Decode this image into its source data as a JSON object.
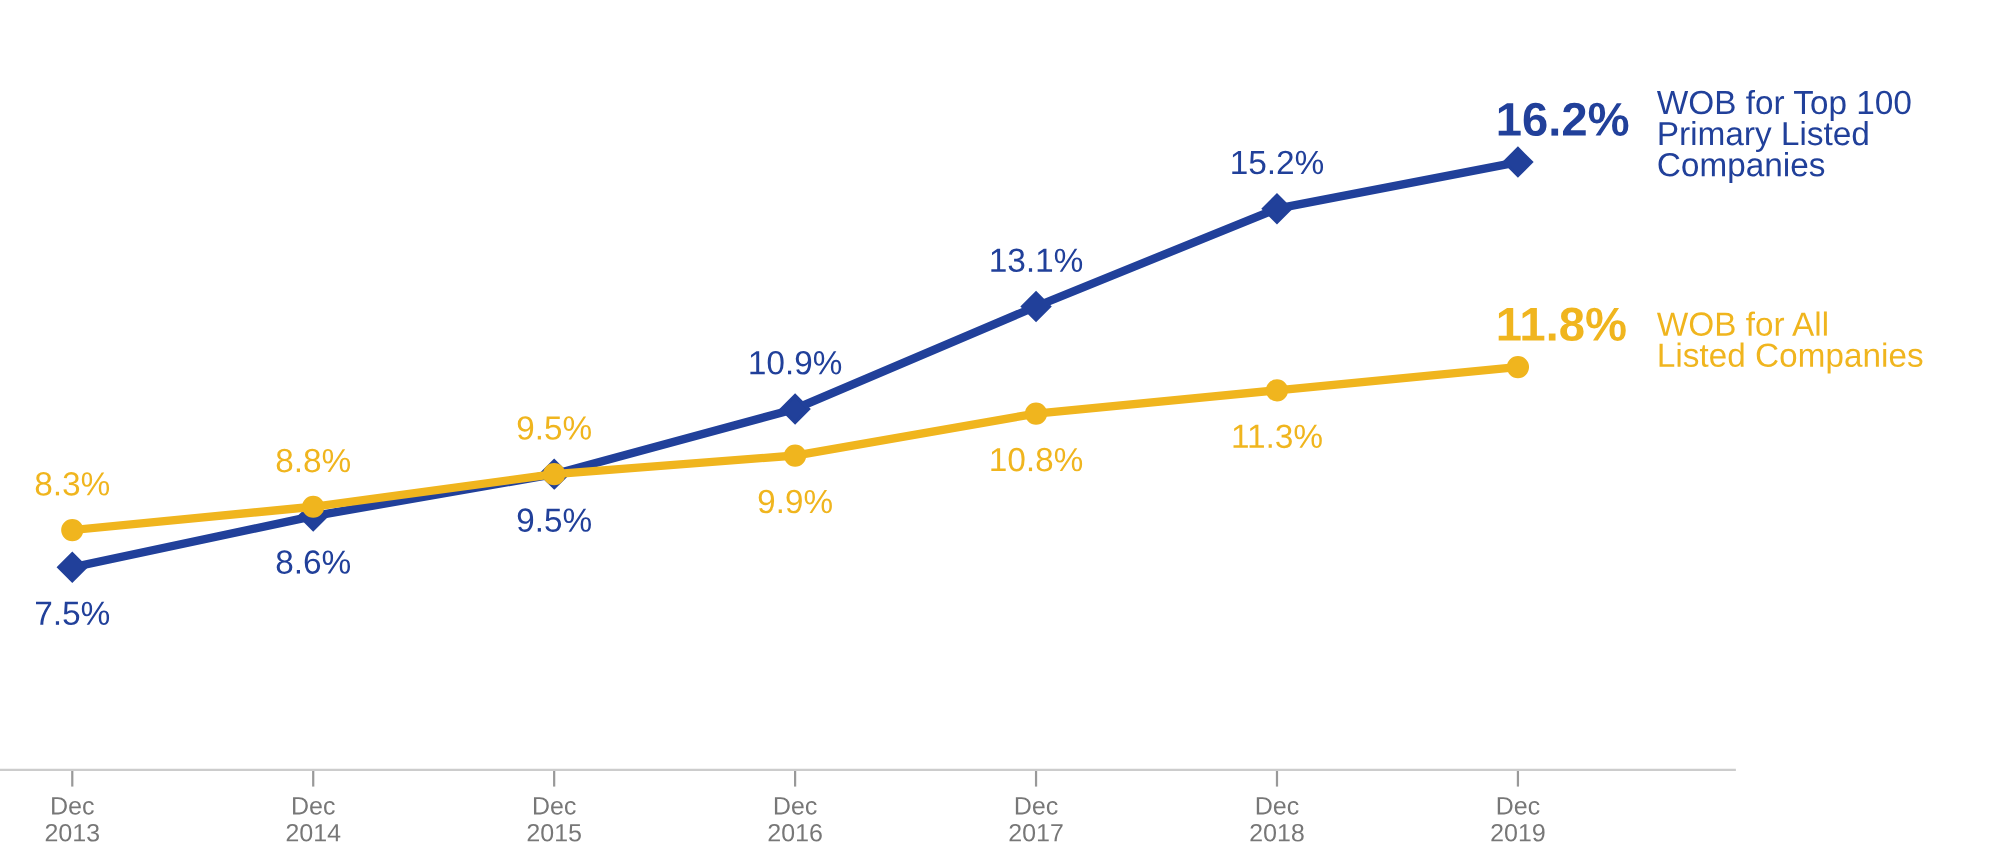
{
  "chart_data": {
    "type": "line",
    "categories": [
      "Dec\n2013",
      "Dec\n2014",
      "Dec\n2015",
      "Dec\n2016",
      "Dec\n2017",
      "Dec\n2018",
      "Dec\n2019"
    ],
    "series": [
      {
        "name": "WOB for Top 100\nPrimary Listed\nCompanies",
        "color": "#21409a",
        "marker": "diamond",
        "values": [
          7.5,
          8.6,
          9.5,
          10.9,
          13.1,
          15.2,
          16.2
        ],
        "value_labels": [
          "7.5%",
          "8.6%",
          "9.5%",
          "10.9%",
          "13.1%",
          "15.2%",
          "16.2%"
        ]
      },
      {
        "name": "WOB for All\nListed Companies",
        "color": "#f0b51e",
        "marker": "circle",
        "values": [
          8.3,
          8.8,
          9.5,
          9.9,
          10.8,
          11.3,
          11.8
        ],
        "value_labels": [
          "8.3%",
          "8.8%",
          "9.5%",
          "9.9%",
          "10.8%",
          "11.3%",
          "11.8%"
        ]
      }
    ],
    "grid": false,
    "legend": false
  }
}
